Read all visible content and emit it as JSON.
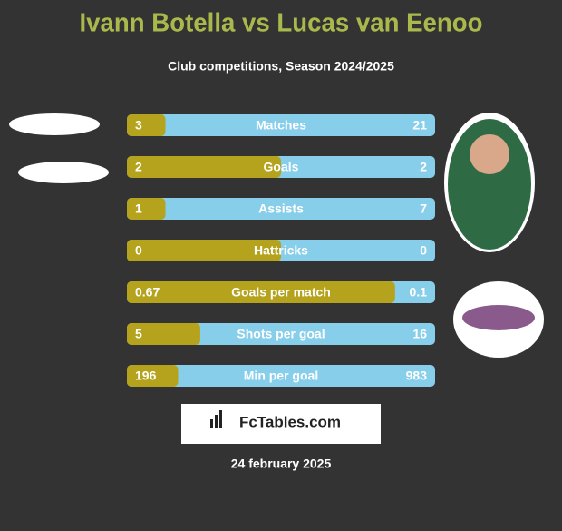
{
  "header": {
    "title": "Ivann Botella vs Lucas van Eenoo",
    "subtitle": "Club competitions, Season 2024/2025"
  },
  "rows": [
    {
      "label": "Matches",
      "left": 3,
      "right": 21
    },
    {
      "label": "Goals",
      "left": 2,
      "right": 2
    },
    {
      "label": "Assists",
      "left": 1,
      "right": 7
    },
    {
      "label": "Hattricks",
      "left": 0,
      "right": 0
    },
    {
      "label": "Goals per match",
      "left": 0.67,
      "right": 0.1
    },
    {
      "label": "Shots per goal",
      "left": 5,
      "right": 16
    },
    {
      "label": "Min per goal",
      "left": 196,
      "right": 983
    }
  ],
  "brand": "FcTables.com",
  "date": "24 february 2025"
}
